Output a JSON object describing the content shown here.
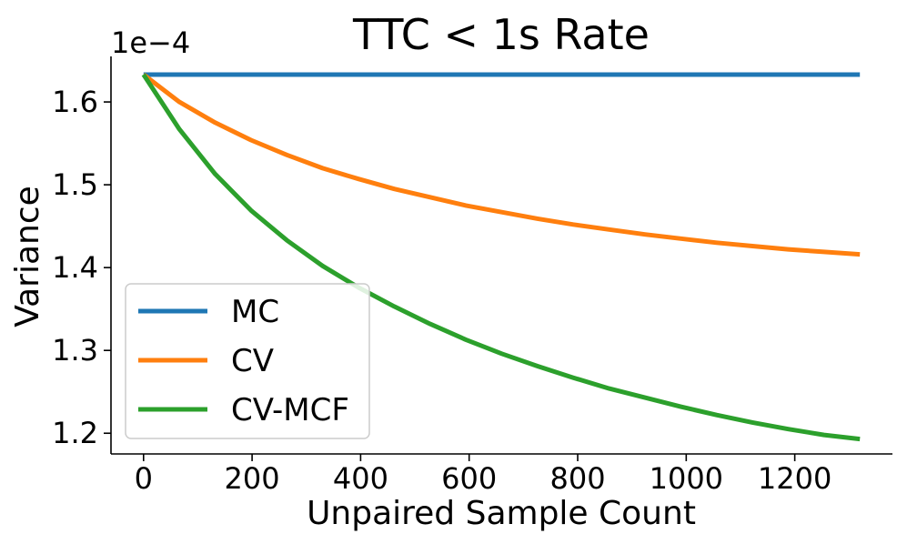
{
  "chart_data": {
    "type": "line",
    "title": "TTC < 1s Rate",
    "xlabel": "Unpaired Sample Count",
    "ylabel": "Variance",
    "y_offset_label": "1e−4",
    "xlim": [
      -60,
      1380
    ],
    "ylim": [
      1.175,
      1.655
    ],
    "xticks": [
      0,
      200,
      400,
      600,
      800,
      1000,
      1200
    ],
    "xtick_labels": [
      "0",
      "200",
      "400",
      "600",
      "800",
      "1000",
      "1200"
    ],
    "yticks": [
      1.2,
      1.3,
      1.4,
      1.5,
      1.6
    ],
    "ytick_labels": [
      "1.2",
      "1.3",
      "1.4",
      "1.5",
      "1.6"
    ],
    "grid": false,
    "legend_position": "lower-left",
    "x": [
      0,
      66,
      132,
      198,
      264,
      330,
      396,
      462,
      528,
      594,
      660,
      726,
      792,
      858,
      924,
      990,
      1056,
      1122,
      1188,
      1254,
      1320
    ],
    "series": [
      {
        "name": "MC",
        "color": "#1f77b4",
        "values": [
          1.633,
          1.633,
          1.633,
          1.633,
          1.633,
          1.633,
          1.633,
          1.633,
          1.633,
          1.633,
          1.633,
          1.633,
          1.633,
          1.633,
          1.633,
          1.633,
          1.633,
          1.633,
          1.633,
          1.633,
          1.633
        ]
      },
      {
        "name": "CV",
        "color": "#ff7f0e",
        "values": [
          1.633,
          1.6,
          1.575,
          1.554,
          1.536,
          1.52,
          1.507,
          1.495,
          1.485,
          1.475,
          1.467,
          1.459,
          1.452,
          1.446,
          1.44,
          1.435,
          1.43,
          1.426,
          1.422,
          1.419,
          1.416
        ]
      },
      {
        "name": "CV-MCF",
        "color": "#2ca02c",
        "values": [
          1.633,
          1.567,
          1.513,
          1.469,
          1.433,
          1.402,
          1.376,
          1.353,
          1.332,
          1.313,
          1.296,
          1.281,
          1.267,
          1.254,
          1.243,
          1.232,
          1.222,
          1.213,
          1.205,
          1.198,
          1.193
        ]
      }
    ]
  }
}
